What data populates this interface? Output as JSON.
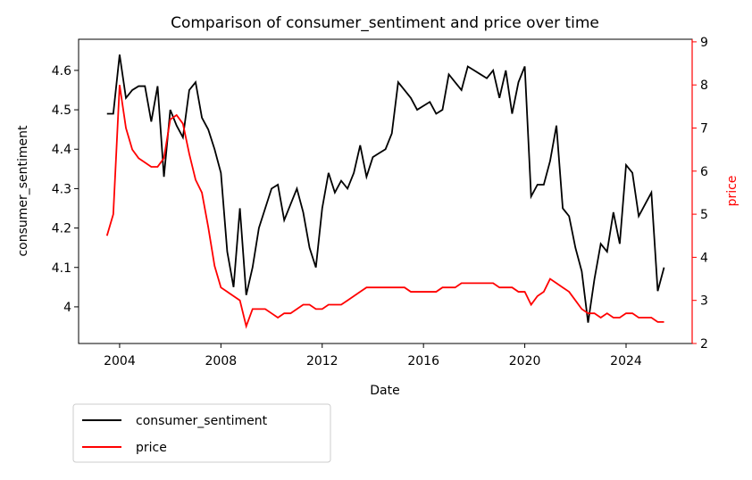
{
  "chart_data": {
    "type": "line",
    "title": "Comparison of consumer_sentiment and price over time",
    "xlabel": "Date",
    "ylabel": "consumer_sentiment",
    "y2label": "price",
    "y2color": "#ff0000",
    "x": [
      2003.5,
      2003.75,
      2004,
      2004.25,
      2004.5,
      2004.75,
      2005,
      2005.25,
      2005.5,
      2005.75,
      2006,
      2006.25,
      2006.5,
      2006.75,
      2007,
      2007.25,
      2007.5,
      2007.75,
      2008,
      2008.25,
      2008.5,
      2008.75,
      2009,
      2009.25,
      2009.5,
      2009.75,
      2010,
      2010.25,
      2010.5,
      2010.75,
      2011,
      2011.25,
      2011.5,
      2011.75,
      2012,
      2012.25,
      2012.5,
      2012.75,
      2013,
      2013.25,
      2013.5,
      2013.75,
      2014,
      2014.25,
      2014.5,
      2014.75,
      2015,
      2015.25,
      2015.5,
      2015.75,
      2016,
      2016.25,
      2016.5,
      2016.75,
      2017,
      2017.25,
      2017.5,
      2017.75,
      2018,
      2018.25,
      2018.5,
      2018.75,
      2019,
      2019.25,
      2019.5,
      2019.75,
      2020,
      2020.25,
      2020.5,
      2020.75,
      2021,
      2021.25,
      2021.5,
      2021.75,
      2022,
      2022.25,
      2022.5,
      2022.75,
      2023,
      2023.25,
      2023.5,
      2023.75,
      2024,
      2024.25,
      2024.5,
      2024.75,
      2025,
      2025.25,
      2025.5
    ],
    "series": [
      {
        "name": "consumer_sentiment",
        "color": "#000000",
        "axis": "y",
        "values": [
          4.49,
          4.49,
          4.64,
          4.53,
          4.55,
          4.56,
          4.56,
          4.47,
          4.56,
          4.33,
          4.5,
          4.46,
          4.43,
          4.55,
          4.57,
          4.48,
          4.45,
          4.4,
          4.34,
          4.14,
          4.05,
          4.25,
          4.03,
          4.1,
          4.2,
          4.25,
          4.3,
          4.31,
          4.22,
          4.26,
          4.3,
          4.24,
          4.15,
          4.1,
          4.25,
          4.34,
          4.29,
          4.32,
          4.3,
          4.34,
          4.41,
          4.33,
          4.38,
          4.39,
          4.4,
          4.44,
          4.57,
          4.55,
          4.53,
          4.5,
          4.51,
          4.52,
          4.49,
          4.5,
          4.59,
          4.57,
          4.55,
          4.61,
          4.6,
          4.59,
          4.58,
          4.6,
          4.53,
          4.6,
          4.49,
          4.57,
          4.61,
          4.28,
          4.31,
          4.31,
          4.37,
          4.46,
          4.25,
          4.23,
          4.15,
          4.09,
          3.96,
          4.07,
          4.16,
          4.14,
          4.24,
          4.16,
          4.36,
          4.34,
          4.23,
          4.26,
          4.29,
          4.04,
          4.1
        ]
      },
      {
        "name": "price",
        "color": "#ff0000",
        "axis": "y2",
        "values": [
          4.5,
          5.0,
          8.0,
          7.0,
          6.5,
          6.3,
          6.2,
          6.1,
          6.1,
          6.3,
          7.2,
          7.3,
          7.1,
          6.4,
          5.8,
          5.5,
          4.7,
          3.8,
          3.3,
          3.2,
          3.1,
          3.0,
          2.4,
          2.8,
          2.8,
          2.8,
          2.7,
          2.6,
          2.7,
          2.7,
          2.8,
          2.9,
          2.9,
          2.8,
          2.8,
          2.9,
          2.9,
          2.9,
          3.0,
          3.1,
          3.2,
          3.3,
          3.3,
          3.3,
          3.3,
          3.3,
          3.3,
          3.3,
          3.2,
          3.2,
          3.2,
          3.2,
          3.2,
          3.3,
          3.3,
          3.3,
          3.4,
          3.4,
          3.4,
          3.4,
          3.4,
          3.4,
          3.3,
          3.3,
          3.3,
          3.2,
          3.2,
          2.9,
          3.1,
          3.2,
          3.5,
          3.4,
          3.3,
          3.2,
          3.0,
          2.8,
          2.7,
          2.7,
          2.6,
          2.7,
          2.6,
          2.6,
          2.7,
          2.7,
          2.6,
          2.6,
          2.6,
          2.5,
          2.5
        ]
      }
    ],
    "xlim": [
      2002.38,
      2026.61
    ],
    "xticks": [
      2004,
      2008,
      2012,
      2016,
      2020,
      2024
    ],
    "ylim": [
      3.907,
      4.679
    ],
    "yticks": [
      4.0,
      4.1,
      4.2,
      4.3,
      4.4,
      4.5,
      4.6
    ],
    "y2lim": [
      2.0,
      9.06
    ],
    "y2ticks": [
      2,
      3,
      4,
      5,
      6,
      7,
      8,
      9
    ],
    "legend": "below"
  }
}
